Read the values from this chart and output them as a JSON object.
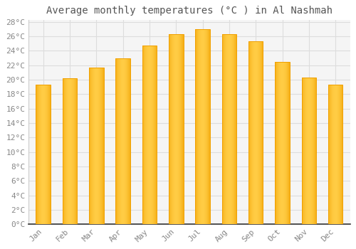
{
  "title": "Average monthly temperatures (°C ) in Al Nashmah",
  "months": [
    "Jan",
    "Feb",
    "Mar",
    "Apr",
    "May",
    "Jun",
    "Jul",
    "Aug",
    "Sep",
    "Oct",
    "Nov",
    "Dec"
  ],
  "values": [
    19.3,
    20.2,
    21.7,
    23.0,
    24.7,
    26.3,
    27.0,
    26.3,
    25.3,
    22.5,
    20.3,
    19.3
  ],
  "bar_color_center": "#FFCC44",
  "bar_color_edge": "#F0A000",
  "ylim": [
    0,
    28
  ],
  "ytick_step": 2,
  "background_color": "#ffffff",
  "plot_bg_color": "#f5f5f5",
  "grid_color": "#dddddd",
  "title_fontsize": 10,
  "tick_fontsize": 8,
  "font_family": "monospace",
  "axis_color": "#555555",
  "label_color": "#888888"
}
